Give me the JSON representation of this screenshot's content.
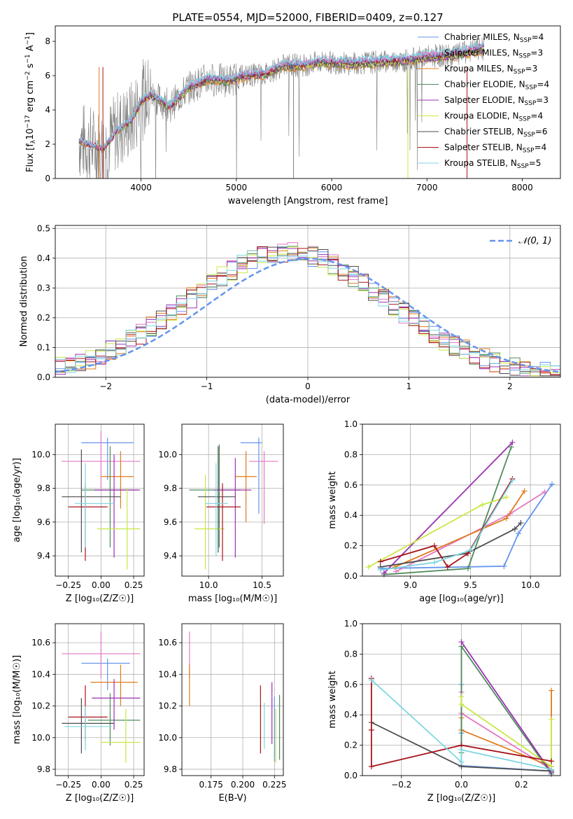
{
  "figure_title": "PLATE=0554, MJD=52000, FIBERID=0409, z=0.127",
  "colors": {
    "chabrier_miles": "#6495ED",
    "salpeter_miles": "#E377C2",
    "kroupa_miles": "#E07B1A",
    "chabrier_elodie": "#4E8B5C",
    "salpeter_elodie": "#9B30B0",
    "kroupa_elodie": "#C8E845",
    "chabrier_stelib": "#4D4D4D",
    "salpeter_stelib": "#A8141B",
    "kroupa_stelib": "#7FD6E0",
    "spectrum": "#808080",
    "gaussian": "#6495ED"
  },
  "chart_data": [
    {
      "id": "spectrum",
      "type": "line",
      "title": "PLATE=0554, MJD=52000, FIBERID=0409, z=0.127",
      "xlabel": "wavelength [Angstrom, rest frame]",
      "ylabel_main": "Flux [f",
      "ylabel_sub": "λ",
      "ylabel_rest": "10",
      "ylabel_exp1": "−17",
      "ylabel_mid": " erg cm",
      "ylabel_exp2": "−2",
      "ylabel_mid2": " s",
      "ylabel_exp3": "−1",
      "ylabel_end": " A",
      "ylabel_exp4": "−1",
      "ylabel_close": "]",
      "xlim": [
        3100,
        8400
      ],
      "ylim": [
        0,
        8.9
      ],
      "xticks": [
        "4000",
        "5000",
        "6000",
        "7000",
        "8000"
      ],
      "xtick_values": [
        4000,
        5000,
        6000,
        7000,
        8000
      ],
      "yticks": [
        "0",
        "2",
        "4",
        "6",
        "8"
      ],
      "ytick_values": [
        0,
        2,
        4,
        6,
        8
      ],
      "continuum_points": [
        [
          3350,
          2.2
        ],
        [
          3600,
          1.7
        ],
        [
          3750,
          2.8
        ],
        [
          3900,
          3.4
        ],
        [
          4000,
          4.5
        ],
        [
          4100,
          4.9
        ],
        [
          4300,
          4.2
        ],
        [
          4500,
          5.3
        ],
        [
          4700,
          5.8
        ],
        [
          4900,
          5.7
        ],
        [
          5100,
          6.0
        ],
        [
          5300,
          6.1
        ],
        [
          5500,
          6.6
        ],
        [
          5700,
          6.6
        ],
        [
          5900,
          6.8
        ],
        [
          6200,
          6.7
        ],
        [
          6500,
          6.8
        ],
        [
          6800,
          6.9
        ],
        [
          7000,
          7.1
        ],
        [
          7300,
          7.2
        ],
        [
          7500,
          7.5
        ],
        [
          7600,
          7.6
        ]
      ],
      "legend": [
        {
          "imf": "Chabrier MILES, N",
          "sub": "SSP",
          "val": "=4"
        },
        {
          "imf": "Salpeter MILES, N",
          "sub": "SSP",
          "val": "=3"
        },
        {
          "imf": "Kroupa MILES, N",
          "sub": "SSP",
          "val": "=3"
        },
        {
          "imf": "Chabrier ELODIE, N",
          "sub": "SSP",
          "val": "=4"
        },
        {
          "imf": "Salpeter ELODIE, N",
          "sub": "SSP",
          "val": "=3"
        },
        {
          "imf": "Kroupa ELODIE, N",
          "sub": "SSP",
          "val": "=4"
        },
        {
          "imf": "Chabrier STELIB, N",
          "sub": "SSP",
          "val": "=6"
        },
        {
          "imf": "Salpeter STELIB, N",
          "sub": "SSP",
          "val": "=4"
        },
        {
          "imf": "Kroupa STELIB, N",
          "sub": "SSP",
          "val": "=5"
        }
      ]
    },
    {
      "id": "residuals",
      "type": "line",
      "xlabel": "(data-model)/error",
      "ylabel": "Normed distribution",
      "xlim": [
        -2.5,
        2.5
      ],
      "ylim": [
        0,
        0.51
      ],
      "xticks": [
        "−2",
        "−1",
        "0",
        "1",
        "2"
      ],
      "xtick_values": [
        -2,
        -1,
        0,
        1,
        2
      ],
      "yticks": [
        "0.0",
        "0.1",
        "0.2",
        "0.3",
        "0.4",
        "0.5"
      ],
      "ytick_values": [
        0,
        0.1,
        0.2,
        0.3,
        0.4,
        0.5
      ],
      "grid": true,
      "legend_label": "𝒩(0, 1)",
      "bin_width": 0.1,
      "gaussian": {
        "mean": 0,
        "sigma": 1
      }
    },
    {
      "id": "age_vs_Z",
      "type": "scatter",
      "xlabel": "Z [log₁₀(Z/Z☉)]",
      "ylabel": "age  [log₁₀(age/yr)]",
      "xlim": [
        -0.35,
        0.33
      ],
      "ylim": [
        9.28,
        10.18
      ],
      "xticks": [
        "−0.25",
        "0.00",
        "0.25"
      ],
      "xtick_values": [
        -0.25,
        0,
        0.25
      ],
      "yticks": [
        "9.4",
        "9.6",
        "9.8",
        "10.0"
      ],
      "ytick_values": [
        9.4,
        9.6,
        9.8,
        10.0
      ],
      "crosses": [
        {
          "c": "chabrier_miles",
          "x": 0.05,
          "xe": [
            -0.15,
            0.25
          ],
          "y": 10.07,
          "ye": [
            9.85,
            10.1
          ]
        },
        {
          "c": "salpeter_miles",
          "x": 0.0,
          "xe": [
            -0.3,
            0.3
          ],
          "y": 9.96,
          "ye": [
            9.8,
            10.14
          ]
        },
        {
          "c": "kroupa_miles",
          "x": 0.15,
          "xe": [
            0.0,
            0.25
          ],
          "y": 9.87,
          "ye": [
            9.68,
            10.02
          ]
        },
        {
          "c": "chabrier_elodie",
          "x": 0.07,
          "xe": [
            -0.15,
            0.28
          ],
          "y": 9.79,
          "ye": [
            9.45,
            10.05
          ]
        },
        {
          "c": "salpeter_elodie",
          "x": 0.1,
          "xe": [
            -0.05,
            0.3
          ],
          "y": 9.79,
          "ye": [
            9.39,
            10.0
          ]
        },
        {
          "c": "kroupa_elodie",
          "x": 0.2,
          "xe": [
            -0.03,
            0.3
          ],
          "y": 9.56,
          "ye": [
            9.32,
            9.8
          ]
        },
        {
          "c": "chabrier_stelib",
          "x": -0.15,
          "xe": [
            -0.3,
            0.15
          ],
          "y": 9.75,
          "ye": [
            9.42,
            10.03
          ]
        },
        {
          "c": "salpeter_stelib",
          "x": -0.12,
          "xe": [
            -0.25,
            0.05
          ],
          "y": 9.69,
          "ye": [
            9.37,
            9.83
          ]
        },
        {
          "c": "kroupa_stelib",
          "x": -0.12,
          "xe": [
            -0.2,
            0.1
          ],
          "y": 9.71,
          "ye": [
            9.45,
            9.95
          ]
        }
      ]
    },
    {
      "id": "age_vs_mass",
      "type": "scatter",
      "xlabel": "mass [log₁₀(M/M☉)]",
      "xlim": [
        9.75,
        10.7
      ],
      "ylim": [
        9.28,
        10.18
      ],
      "xticks": [
        "10.0",
        "10.5"
      ],
      "xtick_values": [
        10.0,
        10.5
      ],
      "yticks": [
        "9.4",
        "9.6",
        "9.8",
        "10.0"
      ],
      "ytick_values": [
        9.4,
        9.6,
        9.8,
        10.0
      ],
      "crosses": [
        {
          "c": "chabrier_miles",
          "x": 10.47,
          "xe": [
            10.3,
            10.5
          ],
          "y": 10.07,
          "ye": [
            9.65,
            10.1
          ]
        },
        {
          "c": "salpeter_miles",
          "x": 10.52,
          "xe": [
            10.38,
            10.65
          ],
          "y": 9.96,
          "ye": [
            9.59,
            10.02
          ]
        },
        {
          "c": "kroupa_miles",
          "x": 10.35,
          "xe": [
            10.25,
            10.45
          ],
          "y": 9.87,
          "ye": [
            9.6,
            10.02
          ]
        },
        {
          "c": "chabrier_elodie",
          "x": 10.1,
          "xe": [
            9.82,
            10.3
          ],
          "y": 9.79,
          "ye": [
            9.45,
            10.06
          ]
        },
        {
          "c": "salpeter_elodie",
          "x": 10.25,
          "xe": [
            10.05,
            10.4
          ],
          "y": 9.79,
          "ye": [
            9.39,
            9.98
          ]
        },
        {
          "c": "kroupa_elodie",
          "x": 9.97,
          "xe": [
            9.87,
            10.15
          ],
          "y": 9.56,
          "ye": [
            9.32,
            9.88
          ]
        },
        {
          "c": "chabrier_stelib",
          "x": 10.09,
          "xe": [
            9.9,
            10.25
          ],
          "y": 9.75,
          "ye": [
            9.42,
            10.05
          ]
        },
        {
          "c": "salpeter_stelib",
          "x": 10.13,
          "xe": [
            9.98,
            10.3
          ],
          "y": 9.69,
          "ye": [
            9.37,
            9.83
          ]
        },
        {
          "c": "kroupa_stelib",
          "x": 10.07,
          "xe": [
            9.97,
            10.18
          ],
          "y": 9.71,
          "ye": [
            9.4,
            9.95
          ]
        }
      ]
    },
    {
      "id": "weight_vs_age",
      "type": "line",
      "xlabel": "age  [log₁₀(age/yr)]",
      "ylabel": "mass weight",
      "xlim": [
        8.6,
        10.25
      ],
      "ylim": [
        0,
        1.0
      ],
      "xticks": [
        "9.0",
        "9.5",
        "10.0"
      ],
      "xtick_values": [
        9.0,
        9.5,
        10.0
      ],
      "yticks": [
        "0.0",
        "0.2",
        "0.4",
        "0.6",
        "0.8",
        "1.0"
      ],
      "ytick_values": [
        0,
        0.2,
        0.4,
        0.6,
        0.8,
        1.0
      ],
      "series": [
        {
          "c": "chabrier_miles",
          "x": [
            8.75,
            9.78,
            9.9,
            10.18
          ],
          "y": [
            0.05,
            0.065,
            0.28,
            0.605
          ]
        },
        {
          "c": "salpeter_miles",
          "x": [
            8.88,
            9.83,
            10.12
          ],
          "y": [
            0.03,
            0.41,
            0.555
          ]
        },
        {
          "c": "kroupa_miles",
          "x": [
            8.87,
            9.8,
            9.95
          ],
          "y": [
            0.06,
            0.38,
            0.56
          ]
        },
        {
          "c": "chabrier_elodie",
          "x": [
            8.78,
            9.48,
            9.84
          ],
          "y": [
            0.01,
            0.05,
            0.85
          ]
        },
        {
          "c": "salpeter_elodie",
          "x": [
            8.78,
            9.85
          ],
          "y": [
            0.02,
            0.88
          ]
        },
        {
          "c": "kroupa_elodie",
          "x": [
            8.65,
            9.6,
            9.8
          ],
          "y": [
            0.06,
            0.47,
            0.52
          ]
        },
        {
          "c": "chabrier_stelib",
          "x": [
            8.75,
            9.47,
            9.87,
            9.92
          ],
          "y": [
            0.06,
            0.15,
            0.31,
            0.35
          ]
        },
        {
          "c": "salpeter_stelib",
          "x": [
            8.75,
            9.2,
            9.31,
            9.48,
            9.85
          ],
          "y": [
            0.095,
            0.2,
            0.06,
            0.15,
            0.64
          ]
        },
        {
          "c": "kroupa_stelib",
          "x": [
            8.75,
            9.2,
            9.5,
            9.85
          ],
          "y": [
            0.04,
            0.09,
            0.17,
            0.63
          ]
        }
      ]
    },
    {
      "id": "mass_vs_Z",
      "type": "scatter",
      "xlabel": "Z [log₁₀(Z/Z☉)]",
      "ylabel": "mass [log₁₀(M/M☉)]",
      "xlim": [
        -0.35,
        0.33
      ],
      "ylim": [
        9.76,
        10.72
      ],
      "xticks": [
        "−0.25",
        "0.00",
        "0.25"
      ],
      "xtick_values": [
        -0.25,
        0,
        0.25
      ],
      "yticks": [
        "9.8",
        "10.0",
        "10.2",
        "10.4",
        "10.6"
      ],
      "ytick_values": [
        9.8,
        10.0,
        10.2,
        10.4,
        10.6
      ],
      "crosses": [
        {
          "c": "chabrier_miles",
          "x": 0.05,
          "xe": [
            -0.15,
            0.22
          ],
          "y": 10.47,
          "ye": [
            10.3,
            10.5
          ]
        },
        {
          "c": "salpeter_miles",
          "x": 0.0,
          "xe": [
            -0.3,
            0.3
          ],
          "y": 10.53,
          "ye": [
            10.38,
            10.67
          ]
        },
        {
          "c": "kroupa_miles",
          "x": 0.15,
          "xe": [
            -0.08,
            0.28
          ],
          "y": 10.35,
          "ye": [
            10.2,
            10.46
          ]
        },
        {
          "c": "chabrier_elodie",
          "x": 0.07,
          "xe": [
            -0.1,
            0.3
          ],
          "y": 10.11,
          "ye": [
            9.95,
            10.28
          ]
        },
        {
          "c": "salpeter_elodie",
          "x": 0.1,
          "xe": [
            -0.07,
            0.3
          ],
          "y": 10.25,
          "ye": [
            10.05,
            10.37
          ]
        },
        {
          "c": "kroupa_elodie",
          "x": 0.19,
          "xe": [
            0.0,
            0.3
          ],
          "y": 9.97,
          "ye": [
            9.84,
            10.18
          ]
        },
        {
          "c": "chabrier_stelib",
          "x": -0.15,
          "xe": [
            -0.3,
            0.1
          ],
          "y": 10.09,
          "ye": [
            9.9,
            10.25
          ]
        },
        {
          "c": "salpeter_stelib",
          "x": -0.12,
          "xe": [
            -0.25,
            0.05
          ],
          "y": 10.13,
          "ye": [
            9.98,
            10.33
          ]
        },
        {
          "c": "kroupa_stelib",
          "x": -0.12,
          "xe": [
            -0.28,
            0.08
          ],
          "y": 10.07,
          "ye": [
            9.92,
            10.2
          ]
        }
      ]
    },
    {
      "id": "mass_vs_ebv",
      "type": "scatter",
      "xlabel": "E(B-V)",
      "xlim": [
        0.152,
        0.232
      ],
      "ylim": [
        9.76,
        10.72
      ],
      "xticks": [
        "0.175",
        "0.200",
        "0.225"
      ],
      "xtick_values": [
        0.175,
        0.2,
        0.225
      ],
      "yticks": [
        "9.8",
        "10.0",
        "10.2",
        "10.4",
        "10.6"
      ],
      "ytick_values": [
        9.8,
        10.0,
        10.2,
        10.4,
        10.6
      ],
      "vlines": [
        {
          "c": "salpeter_miles",
          "x": 0.158,
          "ye": [
            10.38,
            10.67
          ]
        },
        {
          "c": "kroupa_miles",
          "x": 0.158,
          "ye": [
            10.2,
            10.46
          ]
        },
        {
          "c": "salpeter_stelib",
          "x": 0.214,
          "ye": [
            9.9,
            10.33
          ]
        },
        {
          "c": "kroupa_stelib",
          "x": 0.217,
          "ye": [
            9.93,
            10.22
          ]
        },
        {
          "c": "salpeter_elodie",
          "x": 0.223,
          "ye": [
            9.96,
            10.35
          ]
        },
        {
          "c": "chabrier_miles",
          "x": 0.225,
          "ye": [
            9.85,
            10.26
          ]
        },
        {
          "c": "kroupa_elodie",
          "x": 0.226,
          "ye": [
            9.84,
            10.18
          ]
        },
        {
          "c": "chabrier_elodie",
          "x": 0.229,
          "ye": [
            9.86,
            10.27
          ]
        }
      ]
    },
    {
      "id": "weight_vs_Z",
      "type": "line",
      "xlabel": "Z [log₁₀(Z/Z☉)]",
      "ylabel": "mass weight",
      "xlim": [
        -0.33,
        0.33
      ],
      "ylim": [
        0,
        1.0
      ],
      "xticks": [
        "−0.2",
        "0.0",
        "0.2"
      ],
      "xtick_values": [
        -0.2,
        0,
        0.2
      ],
      "yticks": [
        "0.0",
        "0.2",
        "0.4",
        "0.6",
        "0.8",
        "1.0"
      ],
      "ytick_values": [
        0,
        0.2,
        0.4,
        0.6,
        0.8,
        1.0
      ],
      "series": [
        {
          "c": "chabrier_miles",
          "x": [
            0,
            0,
            0,
            0.3
          ],
          "y": [
            0.6,
            0.28,
            0.065,
            0.03
          ]
        },
        {
          "c": "salpeter_miles",
          "x": [
            0,
            0,
            0.3
          ],
          "y": [
            0.55,
            0.41,
            0.04
          ]
        },
        {
          "c": "kroupa_miles",
          "x": [
            0,
            0,
            0.3,
            0.3
          ],
          "y": [
            0.38,
            0.3,
            0.06,
            0.56
          ]
        },
        {
          "c": "chabrier_elodie",
          "x": [
            0,
            0,
            0.3
          ],
          "y": [
            0.15,
            0.85,
            0.01
          ]
        },
        {
          "c": "salpeter_elodie",
          "x": [
            0,
            0.3
          ],
          "y": [
            0.88,
            0.02
          ]
        },
        {
          "c": "kroupa_elodie",
          "x": [
            0,
            0,
            0.3,
            0.3
          ],
          "y": [
            0.52,
            0.47,
            0.06,
            0.37
          ]
        },
        {
          "c": "chabrier_stelib",
          "x": [
            -0.3,
            0,
            0.3
          ],
          "y": [
            0.35,
            0.06,
            0.03
          ]
        },
        {
          "c": "salpeter_stelib",
          "x": [
            -0.3,
            -0.3,
            -0.3,
            0,
            0.3
          ],
          "y": [
            0.64,
            0.3,
            0.06,
            0.2,
            0.095
          ]
        },
        {
          "c": "kroupa_stelib",
          "x": [
            -0.3,
            0,
            0,
            0.3
          ],
          "y": [
            0.63,
            0.09,
            0.17,
            0.04
          ]
        }
      ]
    }
  ]
}
